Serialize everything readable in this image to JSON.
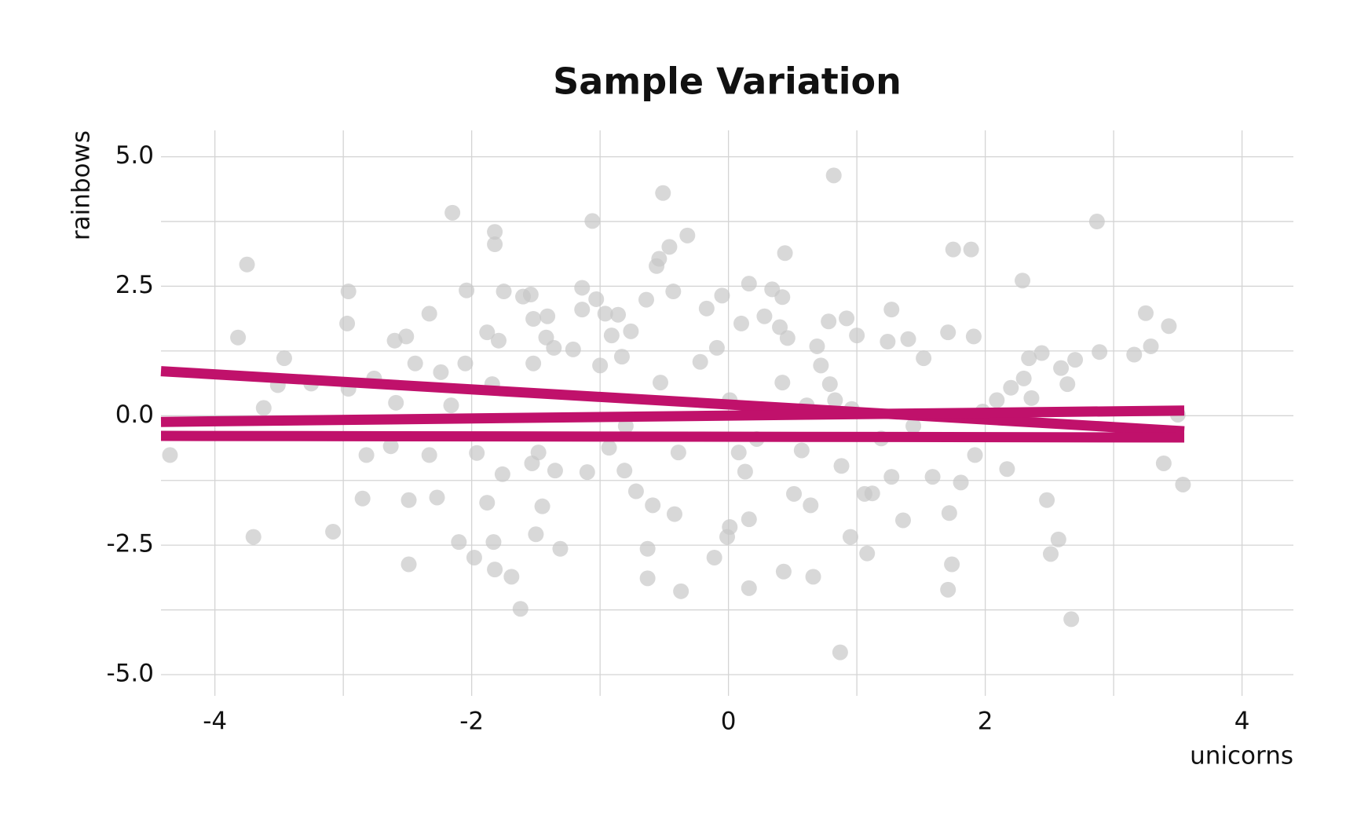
{
  "chart_data": {
    "type": "scatter",
    "title": "Sample Variation",
    "x_label": "unicorns",
    "y_label": "rainbows",
    "xlim": [
      -4.42,
      4.4
    ],
    "ylim": [
      -5.41,
      5.51
    ],
    "xticks": [
      -4,
      -2,
      0,
      2,
      4
    ],
    "yticks": [
      {
        "value": -5,
        "label": "-5.0"
      },
      {
        "value": -2.5,
        "label": "-2.5"
      },
      {
        "value": 0,
        "label": "0.0"
      },
      {
        "value": 2.5,
        "label": "2.5"
      },
      {
        "value": 5,
        "label": "5.0"
      }
    ],
    "xminor_ticks": [
      -3,
      -1,
      1,
      3
    ],
    "yminor_ticks": [
      -3.75,
      -1.25,
      1.25,
      3.75
    ],
    "grid": true,
    "series": [
      {
        "mode": "points",
        "color": "#c8c8c8",
        "x": [
          -4.35,
          -3.75,
          -3.82,
          -3.7,
          -3.62,
          -3.46,
          -3.51,
          -3.25,
          -3.08,
          -2.96,
          -2.97,
          -2.96,
          -2.85,
          -2.82,
          -2.76,
          -2.6,
          -2.51,
          -2.59,
          -2.63,
          -2.49,
          -2.49,
          -2.44,
          -2.33,
          -2.33,
          -2.27,
          -2.24,
          -2.15,
          -2.16,
          -2.1,
          -2.04,
          -2.05,
          -1.98,
          -1.96,
          -1.88,
          -1.82,
          -1.82,
          -1.84,
          -1.88,
          -1.79,
          -1.83,
          -1.82,
          -1.75,
          -1.76,
          -1.69,
          -1.62,
          -1.6,
          -1.54,
          -1.52,
          -1.52,
          -1.53,
          -1.5,
          -1.41,
          -1.42,
          -1.45,
          -1.36,
          -1.35,
          -1.31,
          -1.21,
          -1.14,
          -1.14,
          -1.1,
          -1.06,
          -1.03,
          -1.0,
          -0.96,
          -0.91,
          -0.86,
          -0.83,
          -0.81,
          -0.76,
          -0.72,
          -0.64,
          -0.63,
          -0.63,
          -0.59,
          -0.56,
          -0.54,
          -0.51,
          -0.46,
          -0.43,
          -0.42,
          -0.37,
          -0.32,
          -0.22,
          -0.17,
          -0.11,
          -0.09,
          -0.05,
          -0.01,
          0.01,
          0.1,
          0.13,
          0.16,
          0.16,
          0.16,
          0.28,
          0.34,
          0.4,
          0.42,
          0.44,
          0.43,
          0.46,
          0.51,
          0.57,
          0.61,
          0.66,
          0.64,
          0.69,
          0.72,
          0.78,
          0.82,
          0.79,
          0.87,
          0.88,
          0.92,
          0.95,
          1.0,
          1.06,
          1.08,
          1.12,
          1.24,
          1.27,
          1.27,
          1.36,
          1.4,
          1.52,
          1.59,
          1.71,
          1.75,
          1.89,
          1.71,
          1.74,
          1.72,
          1.81,
          1.91,
          1.92,
          1.98,
          2.09,
          2.17,
          2.2,
          2.29,
          2.3,
          2.34,
          2.36,
          2.44,
          2.48,
          2.51,
          2.57,
          2.59,
          2.64,
          2.67,
          2.7,
          2.87,
          2.89,
          3.16,
          3.25,
          3.29,
          3.39,
          3.43,
          3.5,
          3.54,
          1.19,
          0.22,
          -0.39,
          -0.93,
          -1.48,
          -0.53,
          0.01,
          0.42,
          0.96,
          1.44,
          0.83,
          0.08,
          -0.8
        ],
        "values": [
          -0.76,
          2.92,
          1.51,
          -2.34,
          0.15,
          1.11,
          0.59,
          0.62,
          -2.24,
          2.4,
          1.78,
          0.52,
          -1.6,
          -0.76,
          0.72,
          1.45,
          1.53,
          0.25,
          -0.59,
          -1.63,
          -2.87,
          1.01,
          1.97,
          -0.76,
          -1.58,
          0.84,
          3.92,
          0.2,
          -2.44,
          2.42,
          1.01,
          -2.74,
          -0.72,
          1.61,
          3.55,
          3.31,
          0.61,
          -1.68,
          1.45,
          -2.44,
          -2.97,
          2.4,
          -1.13,
          -3.11,
          -3.73,
          2.3,
          2.34,
          1.87,
          1.01,
          -0.92,
          -2.29,
          1.92,
          1.51,
          -1.75,
          1.31,
          -1.06,
          -2.57,
          1.28,
          2.47,
          2.05,
          -1.09,
          3.76,
          2.25,
          0.97,
          1.97,
          1.55,
          1.95,
          1.14,
          -1.06,
          1.63,
          -1.46,
          2.24,
          -2.57,
          -3.14,
          -1.73,
          2.89,
          3.03,
          4.3,
          3.26,
          2.4,
          -1.9,
          -3.39,
          3.48,
          1.04,
          2.07,
          -2.74,
          1.31,
          2.32,
          -2.34,
          -2.15,
          1.78,
          -1.08,
          2.55,
          -3.33,
          -2.0,
          1.92,
          2.44,
          1.71,
          2.29,
          3.14,
          -3.01,
          1.5,
          -1.51,
          -0.67,
          0.2,
          -3.11,
          -1.73,
          1.34,
          0.97,
          1.82,
          4.64,
          0.61,
          -4.57,
          -0.97,
          1.88,
          -2.34,
          1.55,
          -1.51,
          -2.66,
          -1.5,
          1.43,
          2.05,
          -1.18,
          -2.02,
          1.48,
          1.11,
          -1.18,
          1.61,
          3.21,
          3.21,
          -3.36,
          -2.87,
          -1.88,
          -1.29,
          1.53,
          -0.76,
          0.08,
          0.3,
          -1.03,
          0.54,
          2.61,
          0.72,
          1.11,
          0.34,
          1.21,
          -1.63,
          -2.67,
          -2.39,
          0.92,
          0.61,
          -3.93,
          1.08,
          3.75,
          1.23,
          1.18,
          1.98,
          1.34,
          -0.92,
          1.73,
          0.02,
          -1.33,
          -0.44,
          -0.45,
          -0.71,
          -0.62,
          -0.71,
          0.64,
          0.3,
          0.64,
          0.13,
          -0.2,
          0.3,
          -0.71,
          -0.2
        ]
      },
      {
        "mode": "line",
        "color": "#c0116b",
        "x": [
          -4.42,
          3.55
        ],
        "values": [
          0.86,
          -0.3
        ]
      },
      {
        "mode": "line",
        "color": "#c0116b",
        "x": [
          -4.42,
          3.55
        ],
        "values": [
          -0.12,
          0.1
        ]
      },
      {
        "mode": "line",
        "color": "#c0116b",
        "x": [
          -4.42,
          3.55
        ],
        "values": [
          -0.39,
          -0.42
        ]
      }
    ]
  }
}
